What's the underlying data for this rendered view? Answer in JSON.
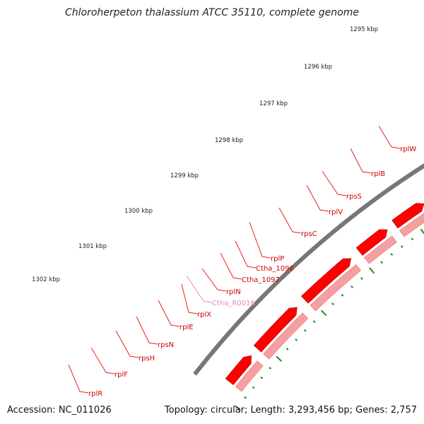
{
  "title": "Chloroherpeton thalassium ATCC 35110, complete genome",
  "footer": {
    "accession": "Accession: NC_011026",
    "summary": "Topology: circular; Length: 3,293,456 bp; Genes: 2,757"
  },
  "scale_labels": [
    "1295 kbp",
    "1296 kbp",
    "1297 kbp",
    "1298 kbp",
    "1299 kbp",
    "1300 kbp",
    "1301 kbp",
    "1302 kbp"
  ],
  "gene_labels": [
    {
      "text": "rplW",
      "kind": "cds"
    },
    {
      "text": "rplB",
      "kind": "cds"
    },
    {
      "text": "rpsS",
      "kind": "cds"
    },
    {
      "text": "rplV",
      "kind": "cds"
    },
    {
      "text": "rpsC",
      "kind": "cds"
    },
    {
      "text": "rplP",
      "kind": "cds"
    },
    {
      "text": "Ctha_1096",
      "kind": "cds"
    },
    {
      "text": "Ctha_1097",
      "kind": "cds"
    },
    {
      "text": "rplN",
      "kind": "cds"
    },
    {
      "text": "Ctha_R0016",
      "kind": "rna"
    },
    {
      "text": "rplX",
      "kind": "cds"
    },
    {
      "text": "rplE",
      "kind": "cds"
    },
    {
      "text": "rpsN",
      "kind": "cds"
    },
    {
      "text": "rpsH",
      "kind": "cds"
    },
    {
      "text": "rplF",
      "kind": "cds"
    },
    {
      "text": "rplR",
      "kind": "cds"
    }
  ],
  "colors": {
    "backbone": "#777777",
    "cds": "#ff0000",
    "cds_shadow": "#ee7777",
    "cds_light": "#f4a0a0",
    "rna": "#ee88bb",
    "ticks": "#228822",
    "label_cds": "#cc0000",
    "label_rna": "#ee88bb"
  }
}
